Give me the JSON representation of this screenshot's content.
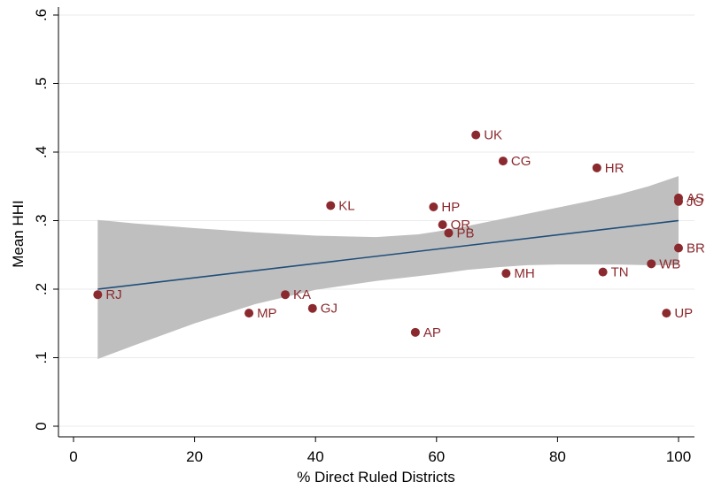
{
  "chart_data": {
    "type": "scatter",
    "title": "",
    "xlabel": "% Direct Ruled Districts",
    "ylabel": "Mean HHI",
    "xlim": [
      0,
      100
    ],
    "ylim": [
      0,
      0.6
    ],
    "xticks": [
      0,
      20,
      40,
      60,
      80,
      100
    ],
    "xtick_labels": [
      "0",
      "20",
      "40",
      "60",
      "80",
      "100"
    ],
    "yticks": [
      0,
      0.1,
      0.2,
      0.3,
      0.4,
      0.5,
      0.6
    ],
    "ytick_labels": [
      "0",
      ".1",
      ".2",
      ".3",
      ".4",
      ".5",
      ".6"
    ],
    "grid": "horizontal",
    "legend": "none",
    "colors": {
      "points": "#8b2a2e",
      "labels": "#8b2a2e",
      "fit_line": "#1f4e79",
      "confidence_band": "#bfbfbf",
      "grid": "#ebebeb"
    },
    "points": [
      {
        "label": "RJ",
        "x": 4,
        "y": 0.192
      },
      {
        "label": "MP",
        "x": 29,
        "y": 0.165
      },
      {
        "label": "KA",
        "x": 35,
        "y": 0.192
      },
      {
        "label": "GJ",
        "x": 39.5,
        "y": 0.172
      },
      {
        "label": "KL",
        "x": 42.5,
        "y": 0.322
      },
      {
        "label": "AP",
        "x": 56.5,
        "y": 0.137
      },
      {
        "label": "HP",
        "x": 59.5,
        "y": 0.32
      },
      {
        "label": "OR",
        "x": 61,
        "y": 0.294
      },
      {
        "label": "PB",
        "x": 62,
        "y": 0.282
      },
      {
        "label": "UK",
        "x": 66.5,
        "y": 0.425
      },
      {
        "label": "CG",
        "x": 71,
        "y": 0.387
      },
      {
        "label": "MH",
        "x": 71.5,
        "y": 0.223
      },
      {
        "label": "HR",
        "x": 86.5,
        "y": 0.377
      },
      {
        "label": "TN",
        "x": 87.5,
        "y": 0.225
      },
      {
        "label": "WB",
        "x": 95.5,
        "y": 0.237
      },
      {
        "label": "UP",
        "x": 98,
        "y": 0.165
      },
      {
        "label": "AS",
        "x": 100,
        "y": 0.333
      },
      {
        "label": "JO",
        "x": 100,
        "y": 0.328
      },
      {
        "label": "BR",
        "x": 100,
        "y": 0.26
      }
    ],
    "fit_line": {
      "x": [
        4,
        100
      ],
      "y": [
        0.2,
        0.3
      ]
    },
    "confidence_band": {
      "x": [
        4,
        10,
        20,
        30,
        40,
        50,
        57,
        60,
        65,
        70,
        75,
        80,
        85,
        90,
        95,
        100
      ],
      "upper": [
        0.301,
        0.296,
        0.289,
        0.283,
        0.278,
        0.276,
        0.28,
        0.284,
        0.292,
        0.301,
        0.31,
        0.319,
        0.328,
        0.338,
        0.35,
        0.365
      ],
      "lower": [
        0.098,
        0.118,
        0.15,
        0.178,
        0.199,
        0.212,
        0.219,
        0.222,
        0.228,
        0.232,
        0.235,
        0.236,
        0.236,
        0.236,
        0.235,
        0.235
      ]
    }
  }
}
